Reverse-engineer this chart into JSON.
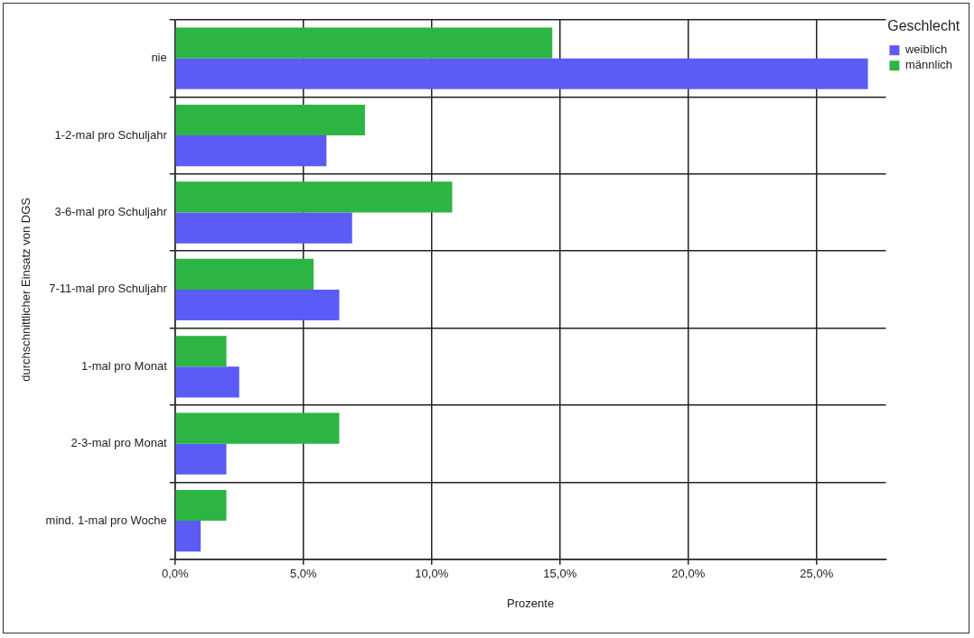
{
  "chart_data": {
    "type": "bar",
    "orientation": "horizontal",
    "xlabel": "Prozente",
    "ylabel": "durchschnittlicher Einsatz von DGS",
    "legend_title": "Geschlecht",
    "categories": [
      "nie",
      "1-2-mal pro Schuljahr",
      "3-6-mal pro Schuljahr",
      "7-11-mal pro Schuljahr",
      "1-mal pro Monat",
      "2-3-mal pro Monat",
      "mind. 1-mal pro Woche"
    ],
    "series": [
      {
        "name": "weiblich",
        "color": "#5b5bf5",
        "values": [
          27.0,
          5.9,
          6.9,
          6.4,
          2.5,
          2.0,
          1.0
        ]
      },
      {
        "name": "männlich",
        "color": "#2db544",
        "values": [
          14.7,
          7.4,
          10.8,
          5.4,
          2.0,
          6.4,
          2.0
        ]
      }
    ],
    "xlim": [
      0,
      27.7
    ],
    "xticks": [
      {
        "value": 0,
        "label": "0,0%"
      },
      {
        "value": 5,
        "label": "5,0%"
      },
      {
        "value": 10,
        "label": "10,0%"
      },
      {
        "value": 15,
        "label": "15,0%"
      },
      {
        "value": 20,
        "label": "20,0%"
      },
      {
        "value": 25,
        "label": "25,0%"
      }
    ],
    "grid": true,
    "legend": "top right"
  }
}
